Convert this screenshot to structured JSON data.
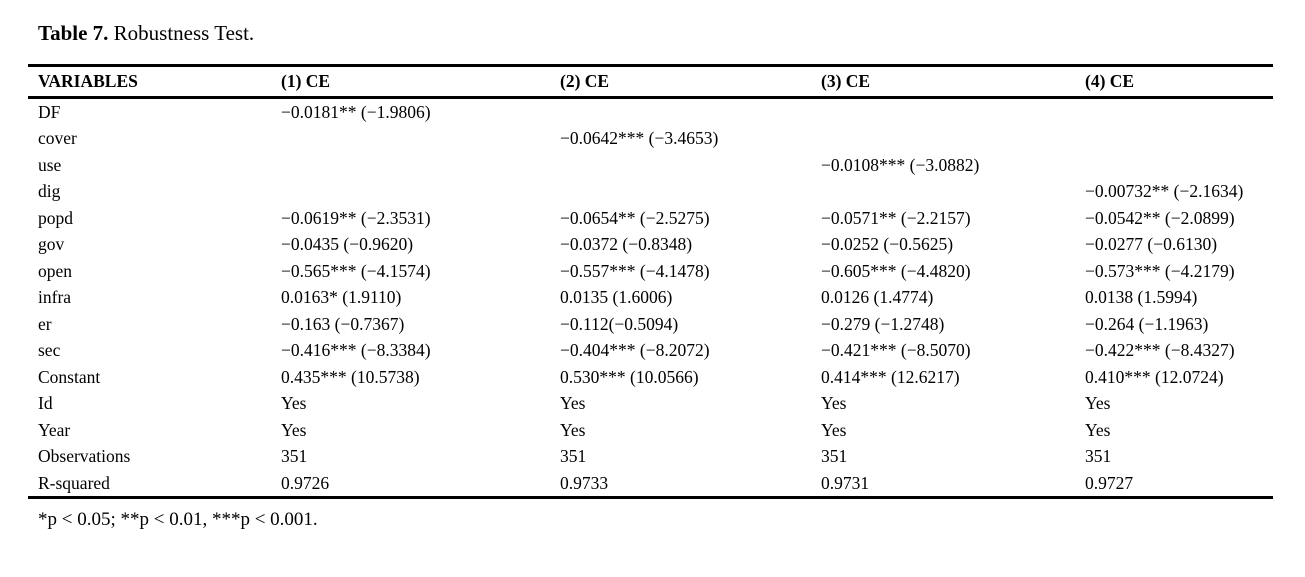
{
  "title": {
    "label": "Table 7.",
    "text": "Robustness Test."
  },
  "table": {
    "headers": [
      "VARIABLES",
      "(1) CE",
      "(2) CE",
      "(3) CE",
      "(4) CE"
    ],
    "rows": [
      {
        "variable": "DF",
        "c1": "−0.0181** (−1.9806)",
        "c2": "",
        "c3": "",
        "c4": ""
      },
      {
        "variable": "cover",
        "c1": "",
        "c2": "−0.0642*** (−3.4653)",
        "c3": "",
        "c4": ""
      },
      {
        "variable": "use",
        "c1": "",
        "c2": "",
        "c3": "−0.0108*** (−3.0882)",
        "c4": ""
      },
      {
        "variable": "dig",
        "c1": "",
        "c2": "",
        "c3": "",
        "c4": "−0.00732** (−2.1634)"
      },
      {
        "variable": "popd",
        "c1": "−0.0619** (−2.3531)",
        "c2": "−0.0654** (−2.5275)",
        "c3": "−0.0571** (−2.2157)",
        "c4": "−0.0542** (−2.0899)"
      },
      {
        "variable": "gov",
        "c1": "−0.0435 (−0.9620)",
        "c2": "−0.0372 (−0.8348)",
        "c3": "−0.0252 (−0.5625)",
        "c4": "−0.0277 (−0.6130)"
      },
      {
        "variable": "open",
        "c1": "−0.565*** (−4.1574)",
        "c2": "−0.557*** (−4.1478)",
        "c3": "−0.605*** (−4.4820)",
        "c4": "−0.573*** (−4.2179)"
      },
      {
        "variable": "infra",
        "c1": "0.0163* (1.9110)",
        "c2": "0.0135 (1.6006)",
        "c3": "0.0126 (1.4774)",
        "c4": "0.0138 (1.5994)"
      },
      {
        "variable": "er",
        "c1": "−0.163 (−0.7367)",
        "c2": "−0.112(−0.5094)",
        "c3": "−0.279 (−1.2748)",
        "c4": "−0.264 (−1.1963)"
      },
      {
        "variable": "sec",
        "c1": "−0.416*** (−8.3384)",
        "c2": "−0.404*** (−8.2072)",
        "c3": "−0.421*** (−8.5070)",
        "c4": "−0.422*** (−8.4327)"
      },
      {
        "variable": "Constant",
        "c1": "0.435*** (10.5738)",
        "c2": "0.530*** (10.0566)",
        "c3": "0.414*** (12.6217)",
        "c4": "0.410*** (12.0724)"
      },
      {
        "variable": "Id",
        "c1": "Yes",
        "c2": "Yes",
        "c3": "Yes",
        "c4": "Yes"
      },
      {
        "variable": "Year",
        "c1": "Yes",
        "c2": "Yes",
        "c3": "Yes",
        "c4": "Yes"
      },
      {
        "variable": "Observations",
        "c1": "351",
        "c2": "351",
        "c3": "351",
        "c4": "351"
      },
      {
        "variable": "R-squared",
        "c1": "0.9726",
        "c2": "0.9733",
        "c3": "0.9731",
        "c4": "0.9727"
      }
    ],
    "footnote": "*p < 0.05; **p < 0.01, ***p < 0.001."
  },
  "colors": {
    "text": "#000000",
    "background": "#ffffff",
    "rule": "#000000"
  }
}
